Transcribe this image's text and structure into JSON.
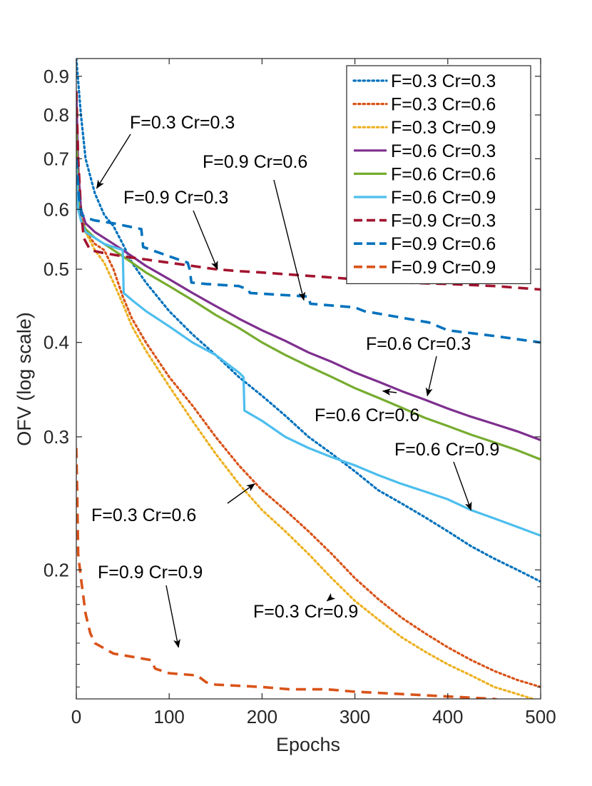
{
  "chart_data": {
    "type": "line",
    "title": "",
    "xlabel": "Epochs",
    "ylabel": "OFV (log scale)",
    "xlim": [
      0,
      500
    ],
    "ylim": [
      0.135,
      0.95
    ],
    "yscale": "log",
    "xticks": [
      0,
      100,
      200,
      300,
      400,
      500
    ],
    "xtick_labels": [
      "0",
      "100",
      "200",
      "300",
      "400",
      "500"
    ],
    "yticks": [
      0.2,
      0.3,
      0.4,
      0.5,
      0.6,
      0.7,
      0.8,
      0.9
    ],
    "ytick_labels": [
      "0.2",
      "0.3",
      "0.4",
      "0.5",
      "0.6",
      "0.7",
      "0.8",
      "0.9"
    ],
    "legend_position": "top-right",
    "series": [
      {
        "name": "F=0.3 Cr=0.3",
        "color": "#0072BD",
        "dash": "dotted",
        "x": [
          0,
          5,
          10,
          20,
          30,
          40,
          50,
          60,
          75,
          100,
          125,
          150,
          175,
          200,
          225,
          250,
          275,
          300,
          325,
          350,
          375,
          400,
          425,
          450,
          475,
          500
        ],
        "y": [
          0.95,
          0.8,
          0.7,
          0.63,
          0.59,
          0.57,
          0.54,
          0.51,
          0.48,
          0.44,
          0.41,
          0.385,
          0.36,
          0.34,
          0.32,
          0.3,
          0.285,
          0.27,
          0.255,
          0.245,
          0.235,
          0.225,
          0.215,
          0.207,
          0.2,
          0.193
        ]
      },
      {
        "name": "F=0.3 Cr=0.6",
        "color": "#D95319",
        "dash": "dotted",
        "x": [
          0,
          5,
          10,
          20,
          30,
          40,
          50,
          60,
          75,
          100,
          125,
          150,
          175,
          200,
          225,
          250,
          275,
          300,
          325,
          350,
          375,
          400,
          425,
          450,
          475,
          500
        ],
        "y": [
          0.75,
          0.6,
          0.56,
          0.54,
          0.53,
          0.5,
          0.46,
          0.43,
          0.4,
          0.36,
          0.33,
          0.3,
          0.275,
          0.255,
          0.24,
          0.225,
          0.21,
          0.195,
          0.183,
          0.173,
          0.165,
          0.158,
          0.152,
          0.147,
          0.143,
          0.14
        ]
      },
      {
        "name": "F=0.3 Cr=0.9",
        "color": "#EDB120",
        "dash": "dotted",
        "x": [
          0,
          5,
          10,
          20,
          30,
          40,
          50,
          60,
          75,
          100,
          125,
          150,
          175,
          200,
          225,
          250,
          275,
          300,
          325,
          350,
          375,
          400,
          425,
          450,
          475,
          500
        ],
        "y": [
          0.7,
          0.58,
          0.56,
          0.53,
          0.51,
          0.48,
          0.45,
          0.42,
          0.39,
          0.35,
          0.315,
          0.285,
          0.26,
          0.24,
          0.225,
          0.21,
          0.195,
          0.182,
          0.172,
          0.163,
          0.156,
          0.15,
          0.145,
          0.14,
          0.137,
          0.134
        ]
      },
      {
        "name": "F=0.6 Cr=0.3",
        "color": "#7E2F8E",
        "dash": "solid",
        "x": [
          0,
          2,
          5,
          10,
          20,
          30,
          40,
          50,
          60,
          75,
          100,
          125,
          150,
          175,
          200,
          225,
          250,
          275,
          300,
          325,
          350,
          375,
          400,
          425,
          450,
          475,
          500
        ],
        "y": [
          0.86,
          0.68,
          0.6,
          0.575,
          0.56,
          0.55,
          0.54,
          0.53,
          0.52,
          0.505,
          0.485,
          0.465,
          0.447,
          0.43,
          0.415,
          0.402,
          0.388,
          0.377,
          0.365,
          0.355,
          0.345,
          0.336,
          0.327,
          0.319,
          0.312,
          0.305,
          0.297
        ]
      },
      {
        "name": "F=0.6 Cr=0.6",
        "color": "#77AC30",
        "dash": "solid",
        "x": [
          0,
          2,
          5,
          10,
          20,
          30,
          40,
          50,
          60,
          75,
          100,
          125,
          150,
          175,
          200,
          225,
          250,
          275,
          300,
          325,
          350,
          375,
          400,
          425,
          450,
          475,
          500
        ],
        "y": [
          0.77,
          0.62,
          0.58,
          0.565,
          0.55,
          0.54,
          0.53,
          0.52,
          0.51,
          0.495,
          0.475,
          0.455,
          0.435,
          0.418,
          0.4,
          0.385,
          0.372,
          0.36,
          0.348,
          0.338,
          0.328,
          0.318,
          0.31,
          0.302,
          0.295,
          0.288,
          0.28
        ]
      },
      {
        "name": "F=0.6 Cr=0.9",
        "color": "#4DBEEE",
        "dash": "solid",
        "x": [
          0,
          2,
          5,
          10,
          20,
          30,
          40,
          50,
          51,
          60,
          75,
          100,
          125,
          150,
          175,
          180,
          181,
          200,
          225,
          250,
          275,
          300,
          325,
          350,
          375,
          400,
          425,
          450,
          475,
          500
        ],
        "y": [
          0.68,
          0.6,
          0.58,
          0.56,
          0.55,
          0.54,
          0.535,
          0.53,
          0.465,
          0.455,
          0.44,
          0.42,
          0.4,
          0.385,
          0.365,
          0.36,
          0.325,
          0.315,
          0.3,
          0.29,
          0.282,
          0.275,
          0.267,
          0.26,
          0.254,
          0.248,
          0.24,
          0.234,
          0.228,
          0.222
        ]
      },
      {
        "name": "F=0.9 Cr=0.3",
        "color": "#A2142F",
        "dash": "dashed",
        "x": [
          0,
          2,
          5,
          8,
          15,
          30,
          50,
          75,
          100,
          125,
          150,
          175,
          200,
          250,
          300,
          350,
          400,
          450,
          500
        ],
        "y": [
          0.86,
          0.7,
          0.6,
          0.55,
          0.53,
          0.525,
          0.52,
          0.515,
          0.51,
          0.505,
          0.5,
          0.497,
          0.495,
          0.49,
          0.485,
          0.48,
          0.478,
          0.475,
          0.47
        ]
      },
      {
        "name": "F=0.9 Cr=0.6",
        "color": "#0072BD",
        "dash": "dashed",
        "x": [
          0,
          3,
          6,
          10,
          20,
          40,
          70,
          72,
          100,
          120,
          122,
          124,
          140,
          175,
          185,
          187,
          250,
          252,
          300,
          310,
          380,
          400,
          450,
          500
        ],
        "y": [
          0.7,
          0.62,
          0.59,
          0.585,
          0.58,
          0.575,
          0.565,
          0.535,
          0.52,
          0.51,
          0.5,
          0.48,
          0.478,
          0.475,
          0.47,
          0.465,
          0.46,
          0.45,
          0.445,
          0.44,
          0.425,
          0.415,
          0.408,
          0.4
        ]
      },
      {
        "name": "F=0.9 Cr=0.9",
        "color": "#D95319",
        "dash": "dashed",
        "x": [
          0,
          1,
          2,
          5,
          10,
          15,
          20,
          40,
          80,
          85,
          100,
          130,
          140,
          150,
          200,
          230,
          270,
          300,
          350,
          400,
          450,
          460,
          470,
          480,
          490,
          500
        ],
        "y": [
          0.29,
          0.25,
          0.21,
          0.195,
          0.175,
          0.165,
          0.16,
          0.155,
          0.152,
          0.148,
          0.146,
          0.145,
          0.142,
          0.141,
          0.14,
          0.139,
          0.139,
          0.138,
          0.137,
          0.136,
          0.135,
          0.134,
          0.133,
          0.132,
          0.131,
          0.13
        ]
      }
    ],
    "annotations": [
      {
        "text": "F=0.3 Cr=0.3",
        "point": [
          22,
          0.64
        ]
      },
      {
        "text": "F=0.9 Cr=0.6",
        "point": [
          245,
          0.455
        ]
      },
      {
        "text": "F=0.9 Cr=0.3",
        "point": [
          152,
          0.5
        ]
      },
      {
        "text": "F=0.6 Cr=0.3",
        "point": [
          378,
          0.34
        ]
      },
      {
        "text": "F=0.6 Cr=0.6",
        "point": [
          330,
          0.345
        ]
      },
      {
        "text": "F=0.6 Cr=0.9",
        "point": [
          425,
          0.24
        ]
      },
      {
        "text": "F=0.3 Cr=0.6",
        "point": [
          192,
          0.26
        ]
      },
      {
        "text": "F=0.9 Cr=0.9",
        "point": [
          110,
          0.158
        ]
      },
      {
        "text": "F=0.3 Cr=0.9",
        "point": [
          270,
          0.182
        ]
      }
    ]
  }
}
